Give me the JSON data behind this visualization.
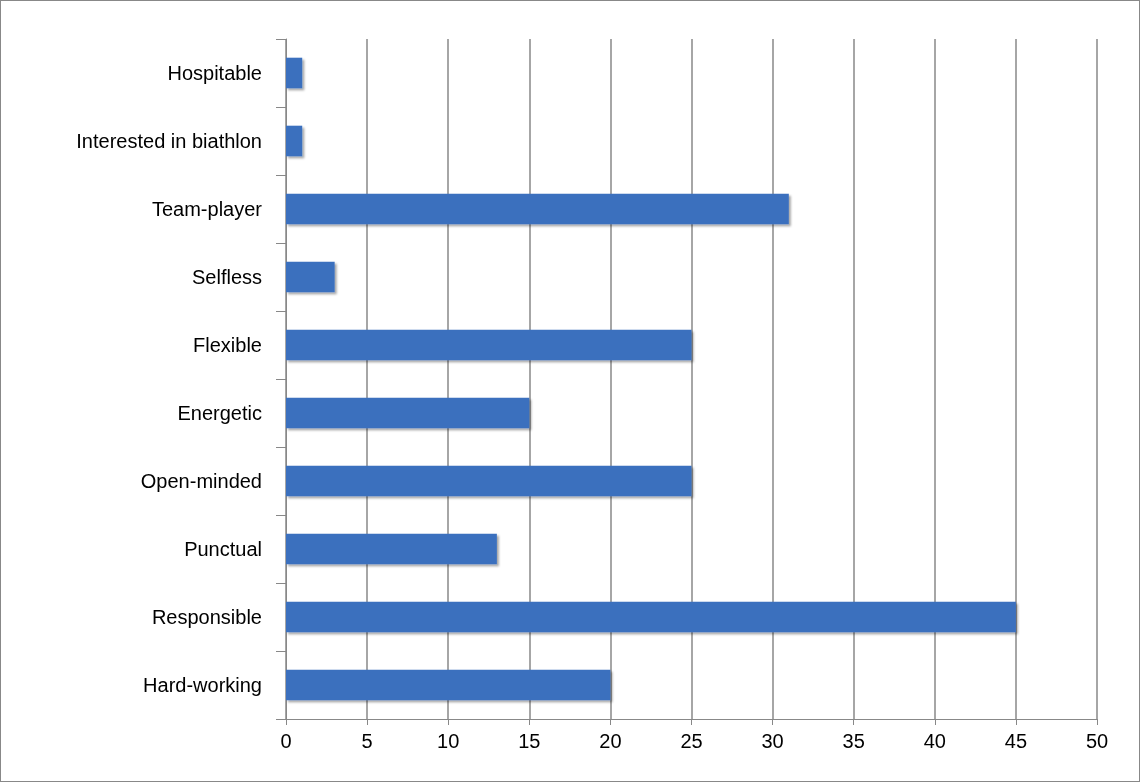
{
  "chart_data": {
    "type": "bar",
    "orientation": "horizontal",
    "categories": [
      "Hospitable",
      "Interested in biathlon",
      "Team-player",
      "Selfless",
      "Flexible",
      "Energetic",
      "Open-minded",
      "Punctual",
      "Responsible",
      "Hard-working"
    ],
    "values": [
      1,
      1,
      31,
      3,
      25,
      15,
      25,
      13,
      45,
      20
    ],
    "color": "#3a6fbe",
    "xlim": [
      0,
      50
    ],
    "xticks": [
      0,
      5,
      10,
      15,
      20,
      25,
      30,
      35,
      40,
      45,
      50
    ],
    "grid": "x"
  }
}
